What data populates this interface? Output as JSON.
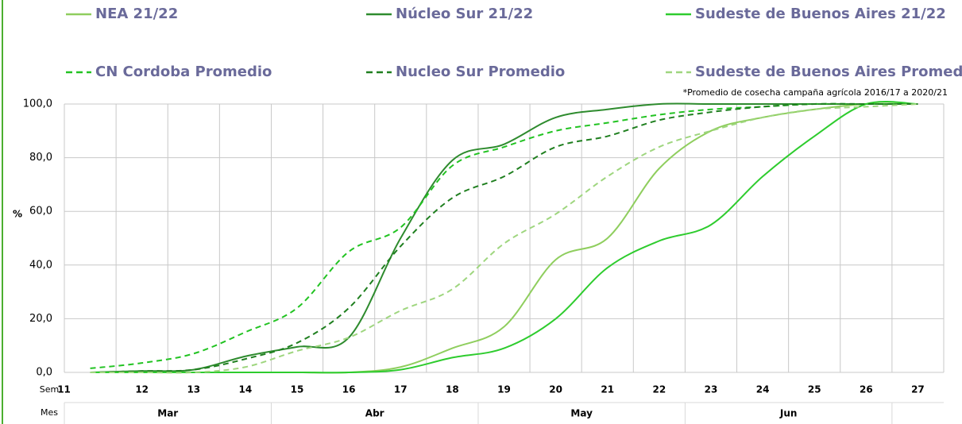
{
  "chart_data": {
    "type": "line",
    "annotation": "*Promedio de cosecha campaña agrícola 2016/17 a 2020/21",
    "y_label": "%",
    "x_row_label": "Sem",
    "month_row_label": "Mes",
    "categories": [
      "11",
      "12",
      "13",
      "14",
      "15",
      "16",
      "17",
      "18",
      "19",
      "20",
      "21",
      "22",
      "23",
      "24",
      "25",
      "26",
      "27"
    ],
    "month_groups": [
      {
        "label": "Mar",
        "span": 4
      },
      {
        "label": "Abr",
        "span": 4
      },
      {
        "label": "May",
        "span": 4
      },
      {
        "label": "Jun",
        "span": 4
      }
    ],
    "ylim": [
      0,
      100
    ],
    "yticks": [
      {
        "value": 0,
        "label": "0,0"
      },
      {
        "value": 20,
        "label": "20,0"
      },
      {
        "value": 40,
        "label": "40,0"
      },
      {
        "value": 60,
        "label": "60,0"
      },
      {
        "value": 80,
        "label": "80,0"
      },
      {
        "value": 100,
        "label": "100,0"
      }
    ],
    "grid": true,
    "series": [
      {
        "name": "NEA 21/22",
        "color": "#8fce5e",
        "dash": false,
        "values": [
          0,
          0,
          0,
          0,
          0,
          0,
          2,
          9,
          17,
          42,
          50,
          76,
          90,
          95,
          98,
          100,
          100
        ]
      },
      {
        "name": "Núcleo Sur 21/22",
        "color": "#2e8b2e",
        "dash": false,
        "values": [
          0,
          0.5,
          1,
          6,
          9.5,
          13,
          50,
          79,
          85,
          95,
          98,
          100,
          100,
          100,
          100,
          100,
          100
        ]
      },
      {
        "name": "Sudeste de Buenos Aires 21/22",
        "color": "#2ecc2e",
        "dash": false,
        "values": [
          0,
          0,
          0,
          0,
          0,
          0,
          1,
          5.5,
          9,
          20,
          39,
          49,
          55,
          73,
          88,
          100,
          100
        ]
      },
      {
        "name": "CN Cordoba Promedio",
        "color": "#22c322",
        "dash": true,
        "values": [
          1.5,
          3.5,
          7,
          15,
          24,
          45,
          54,
          77,
          84,
          90,
          93,
          96,
          98,
          99,
          100,
          100,
          100
        ]
      },
      {
        "name": "Nucleo Sur  Promedio",
        "color": "#1f7f1f",
        "dash": true,
        "values": [
          0,
          0.5,
          1,
          5,
          11,
          24,
          47,
          65,
          73,
          84,
          88,
          94,
          97,
          99,
          100,
          100,
          100
        ]
      },
      {
        "name": "Sudeste de Buenos Aires Promedio",
        "color": "#9fd67f",
        "dash": true,
        "values": [
          0,
          0,
          0,
          2,
          8,
          13,
          23,
          31,
          48,
          59,
          73,
          84,
          90,
          95,
          98,
          99,
          100
        ]
      }
    ]
  }
}
